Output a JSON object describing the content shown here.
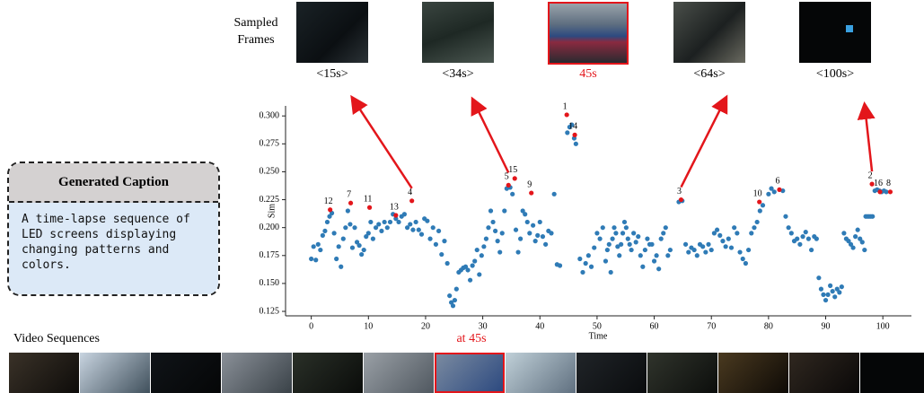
{
  "sampled_frames": {
    "title": "Sampled Frames",
    "labels": [
      "<15s>",
      "<34s>",
      "45s",
      "<64s>",
      "<100s>"
    ]
  },
  "caption": {
    "title": "Generated Caption",
    "text": "A time-lapse sequence of LED screens displaying changing patterns and colors."
  },
  "video_sequences": {
    "title": "Video Sequences",
    "highlight_label": "at 45s"
  },
  "chart_data": {
    "type": "scatter",
    "x_label": "Time",
    "y_label": "Sim",
    "xlim": [
      -4.5,
      105
    ],
    "ylim": [
      0.121,
      0.309
    ],
    "xticks": [
      0,
      10,
      20,
      30,
      40,
      50,
      60,
      70,
      80,
      90,
      100
    ],
    "yticks": [
      0.125,
      {
        "value": 0.15,
        "label": "0.150"
      },
      0.175,
      {
        "value": 0.2,
        "label": "0.200"
      },
      0.225,
      {
        "value": 0.25,
        "label": "0.250"
      },
      0.275,
      {
        "value": 0.3,
        "label": "0.300"
      }
    ],
    "series": [
      {
        "color": "#2f7bb6",
        "x": [
          0,
          0.4,
          0.8,
          1.2,
          1.6,
          2.0,
          2.4,
          2.8,
          3.2,
          3.6,
          4.0,
          4.4,
          4.8,
          5.2,
          5.6,
          6.0,
          6.4,
          6.8,
          7.2,
          7.6,
          8.0,
          8.4,
          8.8,
          9.2,
          9.6,
          10.0,
          10.4,
          10.8,
          11.3,
          11.8,
          12.3,
          12.8,
          13.3,
          13.8,
          14.3,
          14.8,
          15.3,
          15.8,
          16.3,
          16.8,
          17.3,
          17.8,
          18.3,
          18.8,
          19.3,
          19.8,
          20.3,
          20.8,
          21.3,
          21.8,
          22.3,
          22.8,
          23.3,
          23.8,
          24.2,
          24.5,
          24.8,
          25.1,
          25.4,
          25.8,
          26.2,
          26.6,
          27.0,
          27.4,
          27.8,
          28.2,
          28.6,
          29.0,
          29.4,
          29.8,
          30.2,
          30.6,
          31.0,
          31.4,
          31.8,
          32.2,
          32.6,
          33.0,
          33.4,
          33.8,
          34.2,
          34.8,
          35.2,
          35.8,
          36.2,
          36.6,
          37.0,
          37.4,
          37.8,
          38.2,
          38.8,
          39.2,
          39.6,
          40.0,
          40.5,
          41.0,
          41.5,
          42.0,
          42.5,
          43.0,
          43.5,
          44.8,
          45.2,
          45.6,
          46.0,
          46.3,
          47.0,
          47.5,
          48.0,
          48.5,
          49.0,
          49.5,
          50.0,
          50.5,
          51.0,
          51.5,
          51.8,
          52.1,
          52.4,
          52.7,
          53.0,
          53.3,
          53.6,
          53.9,
          54.2,
          54.5,
          54.8,
          55.1,
          55.4,
          55.7,
          56.0,
          56.4,
          56.8,
          57.2,
          57.6,
          58.0,
          58.4,
          58.8,
          59.2,
          59.6,
          60.0,
          60.4,
          60.8,
          61.2,
          61.6,
          62.0,
          62.4,
          62.8,
          64.3,
          64.9,
          65.5,
          66.0,
          66.5,
          67.0,
          67.5,
          68.0,
          68.5,
          69.0,
          69.5,
          70.0,
          70.5,
          71.0,
          71.5,
          72.0,
          72.5,
          73.0,
          73.5,
          74.0,
          74.5,
          75.0,
          75.5,
          76.0,
          76.5,
          77.0,
          77.5,
          78.0,
          78.5,
          79.0,
          80.0,
          80.5,
          81.0,
          82.5,
          83.0,
          83.5,
          84.0,
          84.5,
          85.0,
          85.5,
          86.0,
          86.5,
          87.0,
          87.5,
          88.0,
          88.4,
          88.8,
          89.2,
          89.6,
          90.0,
          90.4,
          90.8,
          91.2,
          91.6,
          92.0,
          92.4,
          92.8,
          93.2,
          93.6,
          94.0,
          94.4,
          94.8,
          95.2,
          95.6,
          96.0,
          96.4,
          96.8,
          97.0,
          97.3,
          97.6,
          97.9,
          98.2,
          98.6,
          99.0,
          99.4,
          99.8,
          100.2,
          100.6
        ],
        "values": [
          0.172,
          0.183,
          0.171,
          0.185,
          0.18,
          0.193,
          0.197,
          0.205,
          0.21,
          0.213,
          0.195,
          0.172,
          0.183,
          0.165,
          0.19,
          0.2,
          0.215,
          0.203,
          0.182,
          0.2,
          0.187,
          0.184,
          0.176,
          0.18,
          0.192,
          0.195,
          0.205,
          0.19,
          0.2,
          0.203,
          0.197,
          0.205,
          0.2,
          0.205,
          0.212,
          0.208,
          0.205,
          0.21,
          0.212,
          0.2,
          0.203,
          0.198,
          0.205,
          0.198,
          0.194,
          0.208,
          0.206,
          0.19,
          0.2,
          0.185,
          0.197,
          0.176,
          0.188,
          0.168,
          0.139,
          0.133,
          0.13,
          0.135,
          0.145,
          0.16,
          0.162,
          0.164,
          0.165,
          0.162,
          0.153,
          0.166,
          0.17,
          0.18,
          0.158,
          0.175,
          0.183,
          0.19,
          0.2,
          0.215,
          0.205,
          0.197,
          0.188,
          0.178,
          0.195,
          0.215,
          0.235,
          0.236,
          0.23,
          0.198,
          0.178,
          0.19,
          0.215,
          0.212,
          0.205,
          0.195,
          0.202,
          0.188,
          0.193,
          0.205,
          0.192,
          0.185,
          0.197,
          0.195,
          0.23,
          0.167,
          0.166,
          0.285,
          0.29,
          0.292,
          0.28,
          0.275,
          0.172,
          0.16,
          0.168,
          0.175,
          0.165,
          0.182,
          0.195,
          0.19,
          0.2,
          0.17,
          0.18,
          0.185,
          0.16,
          0.19,
          0.2,
          0.195,
          0.183,
          0.175,
          0.185,
          0.195,
          0.205,
          0.2,
          0.19,
          0.185,
          0.18,
          0.195,
          0.187,
          0.192,
          0.175,
          0.165,
          0.18,
          0.19,
          0.185,
          0.185,
          0.17,
          0.175,
          0.163,
          0.19,
          0.195,
          0.2,
          0.175,
          0.18,
          0.223,
          0.224,
          0.185,
          0.178,
          0.182,
          0.18,
          0.175,
          0.185,
          0.183,
          0.178,
          0.185,
          0.18,
          0.195,
          0.198,
          0.193,
          0.188,
          0.183,
          0.19,
          0.182,
          0.2,
          0.195,
          0.178,
          0.172,
          0.168,
          0.18,
          0.195,
          0.2,
          0.205,
          0.215,
          0.22,
          0.23,
          0.235,
          0.232,
          0.233,
          0.21,
          0.2,
          0.195,
          0.188,
          0.19,
          0.185,
          0.192,
          0.196,
          0.19,
          0.18,
          0.192,
          0.19,
          0.155,
          0.145,
          0.14,
          0.135,
          0.14,
          0.148,
          0.143,
          0.138,
          0.145,
          0.142,
          0.147,
          0.195,
          0.19,
          0.188,
          0.185,
          0.182,
          0.192,
          0.198,
          0.19,
          0.187,
          0.18,
          0.21,
          0.21,
          0.21,
          0.21,
          0.21,
          0.233,
          0.234,
          0.233,
          0.232,
          0.233,
          0.232
        ]
      },
      {
        "color": "#e3161b",
        "x": [
          3.3,
          6.9,
          10.2,
          14.8,
          17.6,
          34.5,
          35.6,
          38.5,
          44.7,
          46.1,
          64.7,
          78.4,
          81.9,
          98.1,
          99.5,
          101.3
        ],
        "values": [
          0.216,
          0.222,
          0.218,
          0.211,
          0.224,
          0.238,
          0.244,
          0.231,
          0.301,
          0.283,
          0.225,
          0.223,
          0.234,
          0.239,
          0.232,
          0.232
        ],
        "point_labels": [
          "12",
          "7",
          "11",
          "13",
          "4",
          "5",
          "15",
          "9",
          "1",
          "14",
          "3",
          "10",
          "6",
          "2",
          "16",
          "8"
        ]
      }
    ]
  }
}
